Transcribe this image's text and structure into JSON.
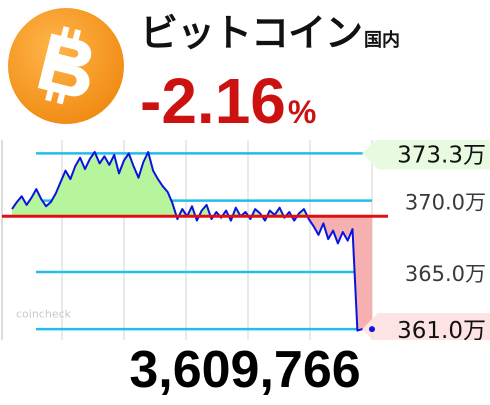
{
  "header": {
    "title": "ビットコイン",
    "title_sub": "国内",
    "change_value": "-2.16",
    "change_unit": "%"
  },
  "price_text": "3,609,766",
  "logo": {
    "icon": "bitcoin-icon",
    "color": "#f7931a"
  },
  "colors": {
    "line": "#0a14e0",
    "up_fill": "#b6f59c",
    "down_fill": "#f6b0b0",
    "baseline": "#e01010",
    "gridline": "#22bde8"
  },
  "chart_data": {
    "type": "line",
    "watermark": "coincheck",
    "y_unit": "万",
    "baseline": 368.9,
    "ylim": [
      360.8,
      374.1
    ],
    "ticks": [
      {
        "value": 373.3,
        "label": "373.3万",
        "style": "high"
      },
      {
        "value": 370.0,
        "label": "370.0万",
        "style": "normal"
      },
      {
        "value": 365.0,
        "label": "365.0万",
        "style": "normal"
      },
      {
        "value": 361.0,
        "label": "361.0万",
        "style": "low"
      }
    ],
    "gridlines": [
      373.3,
      370.0,
      365.0,
      361.0
    ],
    "values": [
      369.4,
      369.9,
      370.3,
      369.7,
      370.2,
      370.8,
      370.1,
      369.6,
      369.9,
      370.5,
      371.3,
      372.1,
      371.5,
      372.4,
      373.0,
      372.2,
      372.9,
      373.4,
      372.6,
      373.1,
      372.5,
      373.2,
      371.9,
      372.8,
      373.3,
      372.4,
      371.6,
      372.7,
      373.4,
      372.1,
      371.5,
      371.0,
      370.6,
      369.8,
      368.7,
      369.4,
      368.9,
      369.6,
      368.6,
      369.3,
      369.7,
      368.7,
      369.2,
      368.8,
      369.3,
      368.6,
      369.5,
      368.9,
      369.2,
      368.7,
      369.4,
      369.1,
      368.6,
      369.3,
      369.0,
      369.5,
      368.8,
      369.2,
      368.6,
      369.1,
      369.4,
      368.7,
      368.2,
      367.6,
      368.4,
      367.3,
      367.9,
      367.0,
      367.8,
      367.2,
      368.0,
      360.9,
      361.0,
      361.1,
      361.0
    ]
  }
}
